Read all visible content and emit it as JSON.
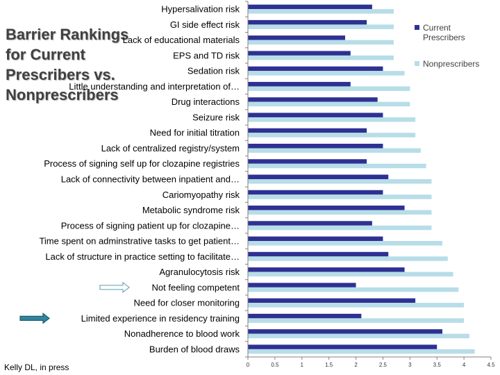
{
  "slide": {
    "title": "Barrier Rankings for Current Prescribers vs. Nonprescribers",
    "credit": "Kelly DL, in press"
  },
  "chart_data": {
    "type": "bar",
    "orientation": "horizontal",
    "title": "",
    "xlabel": "",
    "ylabel": "",
    "xlim": [
      0,
      4.5
    ],
    "xticks": [
      0,
      0.5,
      1,
      1.5,
      2,
      2.5,
      3,
      3.5,
      4,
      4.5
    ],
    "grid": false,
    "legend_position": "right",
    "categories": [
      "Hypersalivation risk",
      "GI side effect risk",
      "Lack of educational materials",
      "EPS and TD risk",
      "Sedation risk",
      "Little understanding and interpretation of…",
      "Drug interactions",
      "Seizure risk",
      "Need for initial titration",
      "Lack of centralized registry/system",
      "Process of signing self up for clozapine registries",
      "Lack of connectivity between inpatient and…",
      "Cariomyopathy risk",
      "Metabolic syndrome risk",
      "Process of signing patient up for clozapine…",
      "Time spent on adminstrative tasks to get patient…",
      "Lack of structure in practice setting to facilitate…",
      "Agranulocytosis risk",
      "Not feeling competent",
      "Need for closer monitoring",
      "Limited experience in residency training",
      "Nonadherence to blood work",
      "Burden of blood draws"
    ],
    "series": [
      {
        "name": "Current Prescribers",
        "color": "#2e3192",
        "values": [
          2.3,
          2.2,
          1.8,
          1.9,
          2.5,
          1.9,
          2.4,
          2.5,
          2.2,
          2.5,
          2.2,
          2.6,
          2.5,
          2.9,
          2.3,
          2.5,
          2.6,
          2.9,
          2.0,
          3.1,
          2.1,
          3.6,
          3.5
        ]
      },
      {
        "name": "Nonprescribers",
        "color": "#b7dde8",
        "values": [
          2.7,
          2.7,
          2.7,
          2.7,
          2.9,
          3.0,
          3.0,
          3.1,
          3.1,
          3.2,
          3.3,
          3.4,
          3.4,
          3.4,
          3.4,
          3.6,
          3.7,
          3.8,
          3.9,
          4.0,
          4.0,
          4.1,
          4.2
        ]
      }
    ],
    "annotations": [
      {
        "type": "arrow",
        "target": "Not feeling competent",
        "style": "outline",
        "color": "#6fa8c0"
      },
      {
        "type": "arrow",
        "target": "Limited experience in residency training",
        "style": "filled",
        "color": "#31859c"
      }
    ]
  }
}
